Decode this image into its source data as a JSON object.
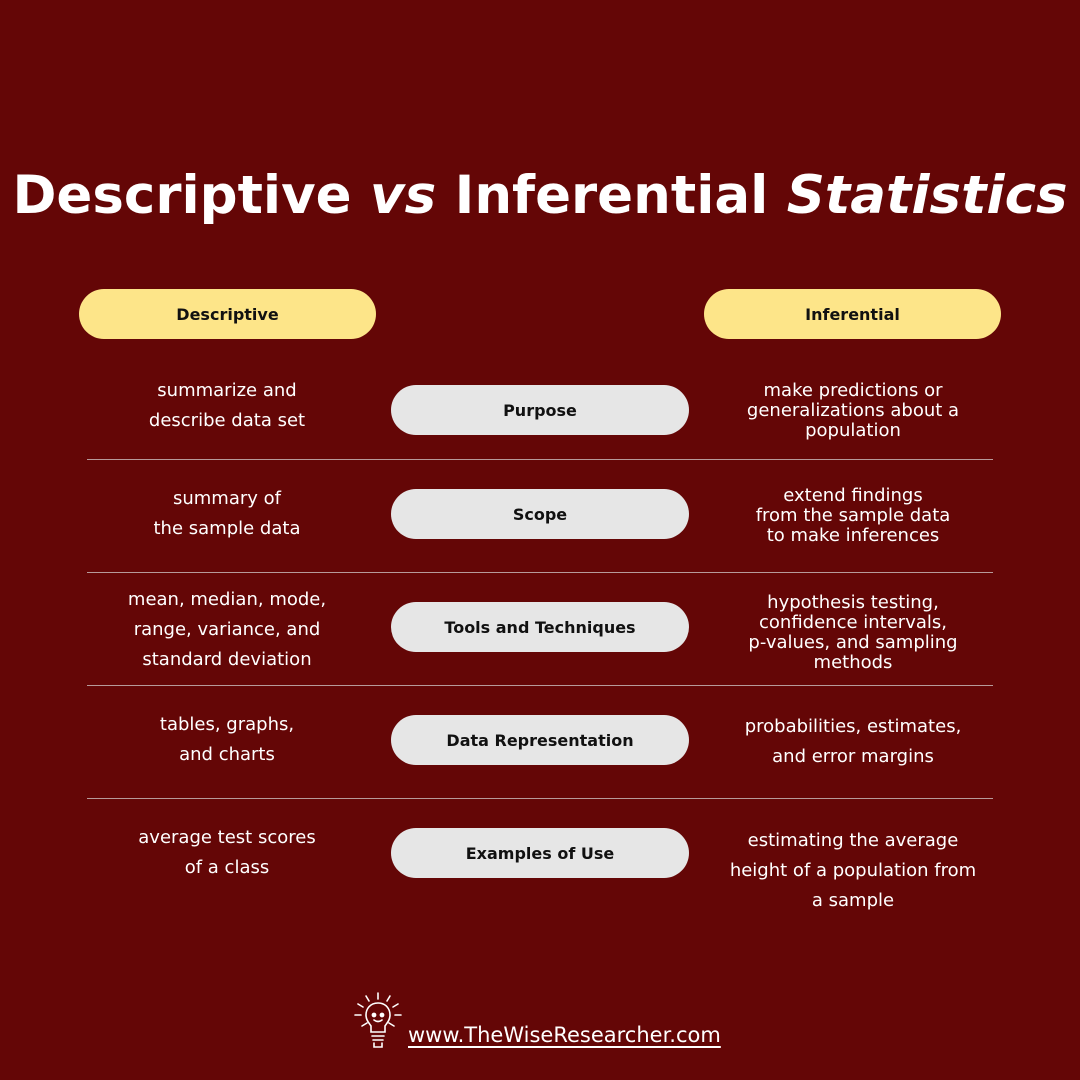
{
  "title": {
    "part1": "Descriptive",
    "part2": " vs ",
    "part3": "Inferential ",
    "part4": "Statistics"
  },
  "headers": {
    "left": "Descriptive",
    "right": "Inferential"
  },
  "rows": [
    {
      "category": "Purpose",
      "descriptive": [
        "summarize and",
        "describe data set"
      ],
      "inferential": [
        "make predictions or",
        "generalizations about a",
        "population"
      ]
    },
    {
      "category": "Scope",
      "descriptive": [
        "summary of",
        "the sample data"
      ],
      "inferential": [
        "extend findings",
        "from the sample data",
        "to make inferences"
      ]
    },
    {
      "category": "Tools and Techniques",
      "descriptive": [
        "mean, median, mode,",
        "range, variance, and",
        "standard deviation"
      ],
      "inferential": [
        "hypothesis testing,",
        "confidence intervals,",
        "p-values, and sampling",
        "methods"
      ]
    },
    {
      "category": "Data Representation",
      "descriptive": [
        "tables, graphs,",
        "and charts"
      ],
      "inferential": [
        "probabilities, estimates,",
        "and error margins"
      ]
    },
    {
      "category": "Examples of Use",
      "descriptive": [
        "average test scores",
        "of a class"
      ],
      "inferential": [
        "estimating the average",
        "height of a population from",
        "a sample"
      ]
    }
  ],
  "footer": {
    "url": "www.TheWiseResearcher.com",
    "logo_icon": "lightbulb-icon"
  },
  "colors": {
    "background": "#640606",
    "header_pill": "#fde589",
    "category_pill": "#e6e6e6",
    "text": "#ffffff"
  }
}
